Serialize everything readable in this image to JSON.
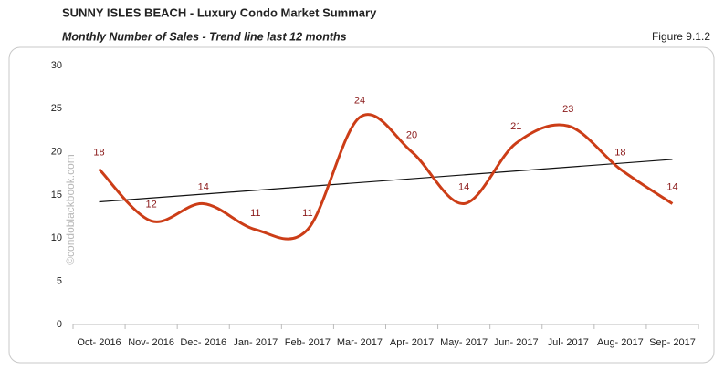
{
  "chart_data": {
    "type": "line",
    "title": "SUNNY ISLES BEACH - Luxury Condo Market Summary",
    "subtitle": "Monthly Number of Sales - Trend line last 12 months",
    "figure_label": "Figure 9.1.2",
    "watermark": "©condoblackbook.com",
    "categories": [
      "Oct- 2016",
      "Nov- 2016",
      "Dec- 2016",
      "Jan- 2017",
      "Feb- 2017",
      "Mar- 2017",
      "Apr- 2017",
      "May- 2017",
      "Jun- 2017",
      "Jul- 2017",
      "Aug- 2017",
      "Sep- 2017"
    ],
    "values": [
      18,
      12,
      14,
      11,
      11,
      24,
      20,
      14,
      21,
      23,
      18,
      14
    ],
    "color": "#cc3d17",
    "label_color": "#8b1a1a",
    "trend_line": true,
    "ylim": [
      0,
      30
    ],
    "yticks": [
      0,
      5,
      10,
      15,
      20,
      25,
      30
    ],
    "grid": false
  }
}
